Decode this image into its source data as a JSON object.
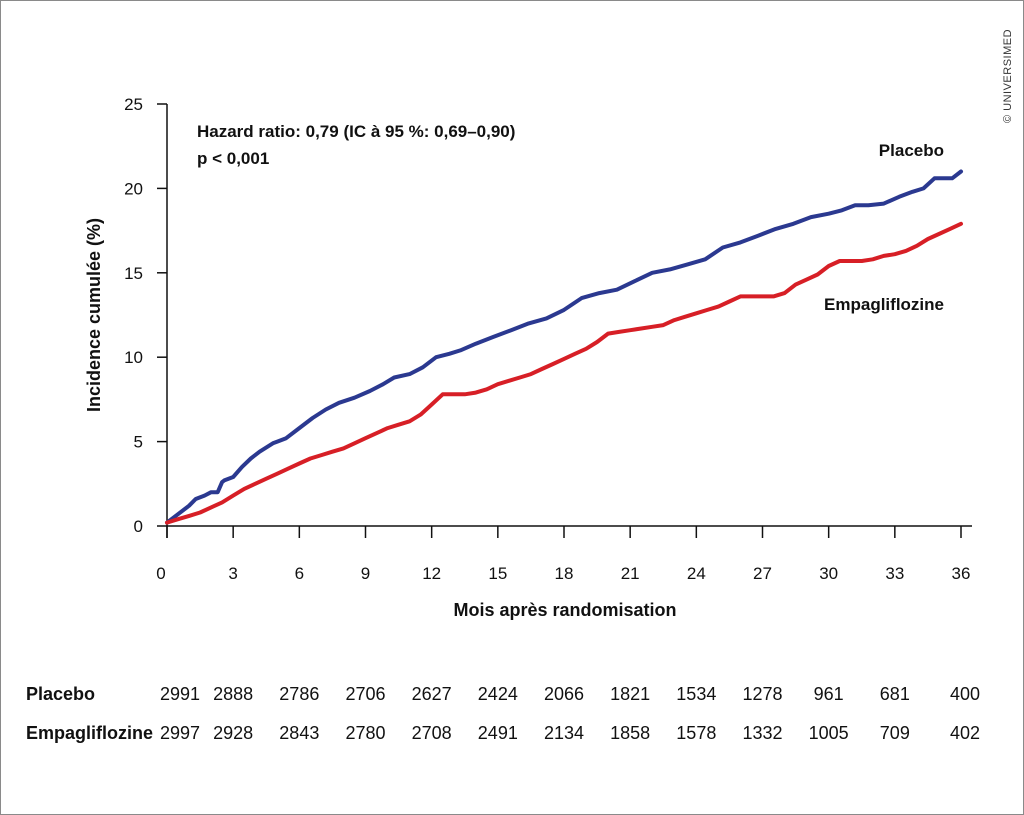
{
  "watermark": "© UNIVERSIMED",
  "chart_data": {
    "type": "line",
    "title": "",
    "xlabel": "Mois après randomisation",
    "ylabel": "Incidence cumulée (%)",
    "xlim": [
      0,
      36
    ],
    "ylim": [
      0,
      25
    ],
    "x_ticks": [
      0,
      3,
      6,
      9,
      12,
      15,
      18,
      21,
      24,
      27,
      30,
      33,
      36
    ],
    "y_ticks": [
      0,
      5,
      10,
      15,
      20,
      25
    ],
    "grid": false,
    "annotations": {
      "hazard_ratio": "Hazard ratio: 0,79 (IC à 95 %: 0,69–0,90)",
      "p_value": "p < 0,001"
    },
    "series": [
      {
        "name": "Placebo",
        "color": "#2b3990",
        "x": [
          0,
          0.5,
          1.0,
          1.3,
          1.7,
          2.0,
          2.3,
          2.5,
          2.6,
          3.0,
          3.4,
          3.8,
          4.2,
          4.8,
          5.0,
          5.4,
          6.0,
          6.6,
          7.2,
          7.8,
          8.5,
          9.2,
          9.8,
          10.3,
          11.0,
          11.6,
          12.2,
          12.8,
          13.3,
          14.0,
          14.8,
          15.6,
          16.4,
          17.2,
          18.0,
          18.8,
          19.6,
          20.4,
          21.2,
          22.0,
          22.8,
          23.6,
          24.4,
          25.2,
          26.0,
          26.8,
          27.6,
          28.4,
          29.2,
          30.0,
          30.6,
          31.2,
          31.8,
          32.5,
          33.2,
          33.8,
          34.3,
          34.8,
          35.2,
          35.6,
          36.0
        ],
        "values": [
          0.2,
          0.7,
          1.2,
          1.6,
          1.8,
          2.0,
          2.0,
          2.6,
          2.7,
          2.9,
          3.5,
          4.0,
          4.4,
          4.9,
          5.0,
          5.2,
          5.8,
          6.4,
          6.9,
          7.3,
          7.6,
          8.0,
          8.4,
          8.8,
          9.0,
          9.4,
          10.0,
          10.2,
          10.4,
          10.8,
          11.2,
          11.6,
          12.0,
          12.3,
          12.8,
          13.5,
          13.8,
          14.0,
          14.5,
          15.0,
          15.2,
          15.5,
          15.8,
          16.5,
          16.8,
          17.2,
          17.6,
          17.9,
          18.3,
          18.5,
          18.7,
          19.0,
          19.0,
          19.1,
          19.5,
          19.8,
          20.0,
          20.6,
          20.6,
          20.6,
          21.0
        ]
      },
      {
        "name": "Empagliflozine",
        "color": "#d71f26",
        "x": [
          0,
          0.5,
          1.0,
          1.5,
          2.0,
          2.5,
          3.0,
          3.5,
          4.0,
          4.5,
          5.0,
          5.5,
          6.0,
          6.5,
          7.0,
          7.5,
          8.0,
          8.5,
          9.0,
          9.5,
          10.0,
          10.5,
          11.0,
          11.5,
          12.0,
          12.5,
          13.0,
          13.5,
          14.0,
          14.5,
          15.0,
          15.5,
          16.0,
          16.5,
          17.0,
          17.5,
          18.0,
          18.5,
          19.0,
          19.5,
          20.0,
          20.5,
          21.0,
          21.5,
          22.0,
          22.5,
          23.0,
          23.5,
          24.0,
          24.5,
          25.0,
          25.5,
          26.0,
          26.5,
          27.0,
          27.5,
          28.0,
          28.5,
          29.0,
          29.5,
          30.0,
          30.5,
          31.0,
          31.5,
          32.0,
          32.5,
          33.0,
          33.5,
          34.0,
          34.5,
          35.0,
          35.5,
          36.0
        ],
        "values": [
          0.2,
          0.4,
          0.6,
          0.8,
          1.1,
          1.4,
          1.8,
          2.2,
          2.5,
          2.8,
          3.1,
          3.4,
          3.7,
          4.0,
          4.2,
          4.4,
          4.6,
          4.9,
          5.2,
          5.5,
          5.8,
          6.0,
          6.2,
          6.6,
          7.2,
          7.8,
          7.8,
          7.8,
          7.9,
          8.1,
          8.4,
          8.6,
          8.8,
          9.0,
          9.3,
          9.6,
          9.9,
          10.2,
          10.5,
          10.9,
          11.4,
          11.5,
          11.6,
          11.7,
          11.8,
          11.9,
          12.2,
          12.4,
          12.6,
          12.8,
          13.0,
          13.3,
          13.6,
          13.6,
          13.6,
          13.6,
          13.8,
          14.3,
          14.6,
          14.9,
          15.4,
          15.7,
          15.7,
          15.7,
          15.8,
          16.0,
          16.1,
          16.3,
          16.6,
          17.0,
          17.3,
          17.6,
          17.9
        ]
      }
    ],
    "risk_table": {
      "rows": [
        {
          "name": "Placebo",
          "values": [
            "2991",
            "2888",
            "2786",
            "2706",
            "2627",
            "2424",
            "2066",
            "1821",
            "1534",
            "1278",
            "961",
            "681",
            "400"
          ]
        },
        {
          "name": "Empagliflozine",
          "values": [
            "2997",
            "2928",
            "2843",
            "2780",
            "2708",
            "2491",
            "2134",
            "1858",
            "1578",
            "1332",
            "1005",
            "709",
            "402"
          ]
        }
      ]
    }
  }
}
